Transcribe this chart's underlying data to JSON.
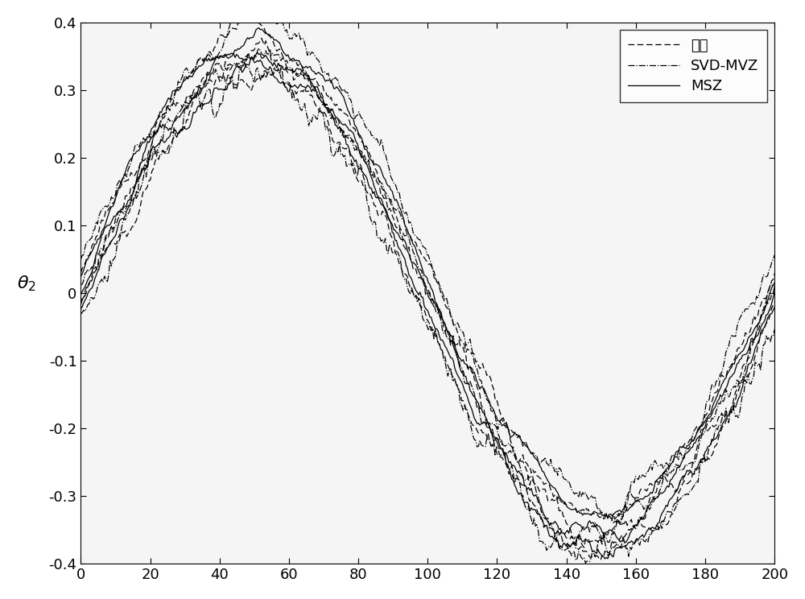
{
  "title": "",
  "ylabel": "$\\theta_2$",
  "xlabel": "",
  "xlim": [
    0,
    200
  ],
  "ylim": [
    -0.4,
    0.4
  ],
  "xticks": [
    0,
    20,
    40,
    60,
    80,
    100,
    120,
    140,
    160,
    180,
    200
  ],
  "yticks": [
    -0.4,
    -0.3,
    -0.2,
    -0.1,
    0.0,
    0.1,
    0.2,
    0.3,
    0.4
  ],
  "n_points": 500,
  "legend_labels": [
    "真値",
    "SVD-MVZ",
    "MSZ"
  ],
  "color": "#000000",
  "linewidth": 0.9,
  "figsize": [
    10.0,
    7.44
  ],
  "dpi": 100,
  "n_truth_lines": 3,
  "n_svd_lines": 3,
  "n_msz_lines": 3,
  "spread_truth": 0.03,
  "spread_svd": 0.045,
  "spread_msz": 0.025,
  "noise_amp_truth": 0.012,
  "noise_amp_svd": 0.015,
  "noise_amp_msz": 0.01
}
